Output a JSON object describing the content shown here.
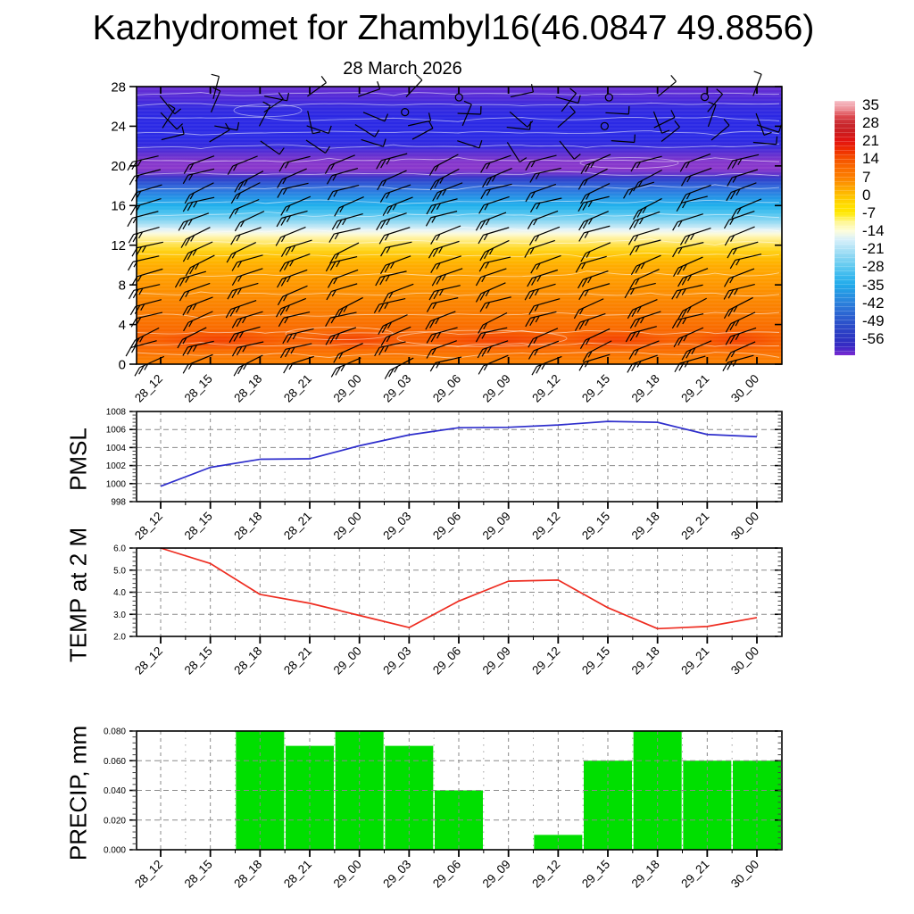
{
  "page": {
    "title": "Kazhydromet for Zhambyl16(46.0847 49.8856)",
    "subtitle": "28 March 2026",
    "background": "#FFFFFF"
  },
  "time_axis": {
    "labels": [
      "28_12",
      "28_15",
      "28_18",
      "28_21",
      "29_00",
      "29_03",
      "29_06",
      "29_09",
      "29_12",
      "29_15",
      "29_18",
      "29_21",
      "30_00"
    ]
  },
  "colorbar": {
    "labels": [
      "35",
      "28",
      "21",
      "14",
      "7",
      "0",
      "-7",
      "-14",
      "-21",
      "-28",
      "-35",
      "-42",
      "-49",
      "-56"
    ],
    "gradient": [
      {
        "f": 0.0,
        "c": "#F6BEC6"
      },
      {
        "f": 0.03,
        "c": "#EE949C"
      },
      {
        "f": 0.06,
        "c": "#DC4A50"
      },
      {
        "f": 0.09,
        "c": "#C8282E"
      },
      {
        "f": 0.125,
        "c": "#CC1C1E"
      },
      {
        "f": 0.158,
        "c": "#E31410"
      },
      {
        "f": 0.195,
        "c": "#EF2E00"
      },
      {
        "f": 0.229,
        "c": "#F55200"
      },
      {
        "f": 0.265,
        "c": "#FA6C00"
      },
      {
        "f": 0.3,
        "c": "#FC7E00"
      },
      {
        "f": 0.335,
        "c": "#FDA000"
      },
      {
        "f": 0.371,
        "c": "#FEC000"
      },
      {
        "f": 0.405,
        "c": "#FFDA00"
      },
      {
        "f": 0.441,
        "c": "#FFE800"
      },
      {
        "f": 0.475,
        "c": "#FFF690"
      },
      {
        "f": 0.512,
        "c": "#FDFDDC"
      },
      {
        "f": 0.545,
        "c": "#D8F0FA"
      },
      {
        "f": 0.582,
        "c": "#AEE2F6"
      },
      {
        "f": 0.617,
        "c": "#84D4F2"
      },
      {
        "f": 0.653,
        "c": "#5FC9F0"
      },
      {
        "f": 0.69,
        "c": "#38B8EE"
      },
      {
        "f": 0.724,
        "c": "#22AAEA"
      },
      {
        "f": 0.76,
        "c": "#2694E2"
      },
      {
        "f": 0.795,
        "c": "#2B80DC"
      },
      {
        "f": 0.83,
        "c": "#2C6AD4"
      },
      {
        "f": 0.865,
        "c": "#2C56CC"
      },
      {
        "f": 0.9,
        "c": "#2C44C6"
      },
      {
        "f": 0.937,
        "c": "#2C34C2"
      },
      {
        "f": 0.968,
        "c": "#3A28C4"
      },
      {
        "f": 1.0,
        "c": "#7C2AD2"
      }
    ]
  },
  "chart_data": [
    {
      "id": "upper_air",
      "type": "heatmap",
      "label": "",
      "description": "Vertical temperature cross-section (deg C, colorbar -56..35) with black wind barbs and thin white contour lines",
      "ylim": [
        0,
        28
      ],
      "ytick_values": [
        0,
        4,
        8,
        12,
        16,
        20,
        24,
        28
      ],
      "ytick_labels": [
        "0",
        "4",
        "8",
        "12",
        "16",
        "20",
        "24",
        "28"
      ],
      "barb_color": "#000000",
      "contour_color": "#FFFFFF",
      "fill_gradient": [
        {
          "f": 0.0,
          "c": "#6B30D2"
        },
        {
          "f": 0.04,
          "c": "#5029D8"
        },
        {
          "f": 0.075,
          "c": "#342ADF"
        },
        {
          "f": 0.11,
          "c": "#2B28E4"
        },
        {
          "f": 0.18,
          "c": "#2B2BE6"
        },
        {
          "f": 0.215,
          "c": "#3329DE"
        },
        {
          "f": 0.24,
          "c": "#5B2ED2"
        },
        {
          "f": 0.268,
          "c": "#8236CC"
        },
        {
          "f": 0.295,
          "c": "#8C38CC"
        },
        {
          "f": 0.315,
          "c": "#6233CC"
        },
        {
          "f": 0.33,
          "c": "#3138C8"
        },
        {
          "f": 0.345,
          "c": "#2E52D2"
        },
        {
          "f": 0.372,
          "c": "#2E74DE"
        },
        {
          "f": 0.4,
          "c": "#2495E6"
        },
        {
          "f": 0.429,
          "c": "#1FB0EC"
        },
        {
          "f": 0.458,
          "c": "#4FC4F0"
        },
        {
          "f": 0.486,
          "c": "#8FD8F2"
        },
        {
          "f": 0.505,
          "c": "#C2E8F6"
        },
        {
          "f": 0.518,
          "c": "#E8F4F4"
        },
        {
          "f": 0.53,
          "c": "#FBFADC"
        },
        {
          "f": 0.543,
          "c": "#FFF3A8"
        },
        {
          "f": 0.565,
          "c": "#FFE55C"
        },
        {
          "f": 0.586,
          "c": "#FFD61E"
        },
        {
          "f": 0.607,
          "c": "#FFC400"
        },
        {
          "f": 0.643,
          "c": "#FFAE00"
        },
        {
          "f": 0.696,
          "c": "#FF9C00"
        },
        {
          "f": 0.75,
          "c": "#FC8C00"
        },
        {
          "f": 0.821,
          "c": "#FA7A00"
        },
        {
          "f": 0.875,
          "c": "#F96A00"
        },
        {
          "f": 0.911,
          "c": "#F85E00"
        },
        {
          "f": 0.946,
          "c": "#FA6A00"
        },
        {
          "f": 0.975,
          "c": "#FB7A00"
        },
        {
          "f": 1.0,
          "c": "#FC8406"
        }
      ]
    },
    {
      "id": "pmsl",
      "type": "line",
      "label": "PMSL",
      "color": "#2E2ECC",
      "ylim": [
        998,
        1008
      ],
      "ytick_values": [
        998,
        1000,
        1002,
        1004,
        1006,
        1008
      ],
      "ytick_labels": [
        "998",
        "1000",
        "1002",
        "1004",
        "1006",
        "1008"
      ],
      "minor_per_major": 5,
      "values": [
        999.7,
        1001.8,
        1002.7,
        1002.75,
        1004.2,
        1005.4,
        1006.2,
        1006.25,
        1006.5,
        1006.9,
        1006.8,
        1005.45,
        1005.2
      ]
    },
    {
      "id": "temp2m",
      "type": "line",
      "label": "TEMP at 2 M",
      "color": "#EE2C20",
      "ylim": [
        2.0,
        6.0
      ],
      "ytick_values": [
        2.0,
        3.0,
        4.0,
        5.0,
        6.0
      ],
      "ytick_labels": [
        "2.0",
        "3.0",
        "4.0",
        "5.0",
        "6.0"
      ],
      "minor_per_major": 5,
      "values": [
        6.0,
        5.3,
        3.9,
        3.5,
        2.95,
        2.4,
        3.6,
        4.5,
        4.55,
        3.3,
        2.35,
        2.45,
        2.85
      ]
    },
    {
      "id": "precip",
      "type": "bar",
      "label": "PRECIP, mm",
      "color": "#00DF00",
      "ylim": [
        0.0,
        0.08
      ],
      "ytick_values": [
        0.0,
        0.02,
        0.04,
        0.06,
        0.08
      ],
      "ytick_labels": [
        "0.000",
        "0.020",
        "0.040",
        "0.060",
        "0.080"
      ],
      "minor_per_major": 5,
      "values": [
        0,
        0,
        0.08,
        0.07,
        0.08,
        0.07,
        0.04,
        0,
        0.01,
        0.06,
        0.08,
        0.06,
        0.06
      ]
    }
  ]
}
